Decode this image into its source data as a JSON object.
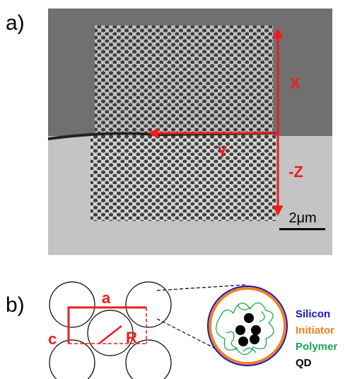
{
  "panel_a": {
    "label": "a)",
    "axes": {
      "x": "X",
      "y": "Y",
      "z": "-Z"
    },
    "scale_bar": "2μm"
  },
  "panel_b": {
    "label": "b)",
    "lattice": {
      "a": "a",
      "c": "c",
      "r": "R"
    },
    "legend": {
      "silicon": "Silicon",
      "initiator": "Initiator",
      "polymer": "Polymer",
      "qd": "QD"
    }
  }
}
